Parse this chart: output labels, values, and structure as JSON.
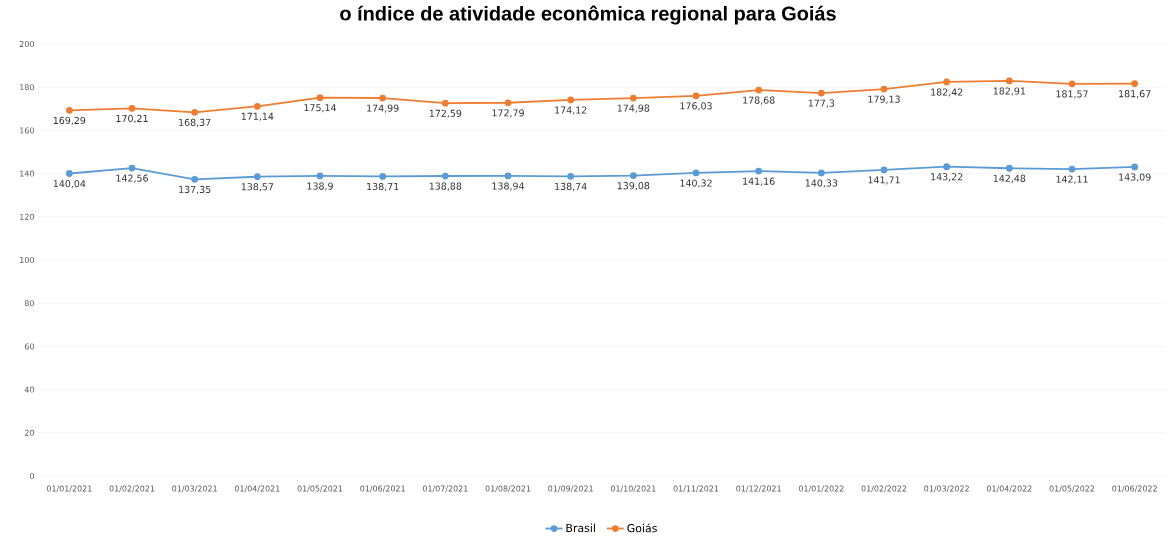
{
  "chart_data": {
    "type": "line",
    "title": "o índice de atividade econômica regional para Goiás",
    "categories": [
      "01/01/2021",
      "01/02/2021",
      "01/03/2021",
      "01/04/2021",
      "01/05/2021",
      "01/06/2021",
      "01/07/2021",
      "01/08/2021",
      "01/09/2021",
      "01/10/2021",
      "01/11/2021",
      "01/12/2021",
      "01/01/2022",
      "01/02/2022",
      "01/03/2022",
      "01/04/2022",
      "01/05/2022",
      "01/06/2022"
    ],
    "series": [
      {
        "name": "Brasil",
        "color": "#5b9bd5",
        "values": [
          140.04,
          142.56,
          137.35,
          138.57,
          138.9,
          138.71,
          138.88,
          138.94,
          138.74,
          139.08,
          140.32,
          141.16,
          140.33,
          141.71,
          143.22,
          142.48,
          142.11,
          143.09
        ],
        "value_labels": [
          "140,04",
          "142,56",
          "137,35",
          "138,57",
          "138,9",
          "138,71",
          "138,88",
          "138,94",
          "138,74",
          "139,08",
          "140,32",
          "141,16",
          "140,33",
          "141,71",
          "143,22",
          "142,48",
          "142,11",
          "143,09"
        ]
      },
      {
        "name": "Goiás",
        "color": "#ed7d31",
        "values": [
          169.29,
          170.21,
          168.37,
          171.14,
          175.14,
          174.99,
          172.59,
          172.79,
          174.12,
          174.98,
          176.03,
          178.68,
          177.3,
          179.13,
          182.42,
          182.91,
          181.57,
          181.67
        ],
        "value_labels": [
          "169,29",
          "170,21",
          "168,37",
          "171,14",
          "175,14",
          "174,99",
          "172,59",
          "172,79",
          "174,12",
          "174,98",
          "176,03",
          "178,68",
          "177,3",
          "179,13",
          "182,42",
          "182,91",
          "181,57",
          "181,67"
        ]
      }
    ],
    "ylim": [
      0,
      200
    ],
    "yticks": [
      0,
      20,
      40,
      60,
      80,
      100,
      120,
      140,
      160,
      180,
      200
    ],
    "grid": "y",
    "legend": "bottom",
    "marker": "circle",
    "line_style": "solid"
  }
}
